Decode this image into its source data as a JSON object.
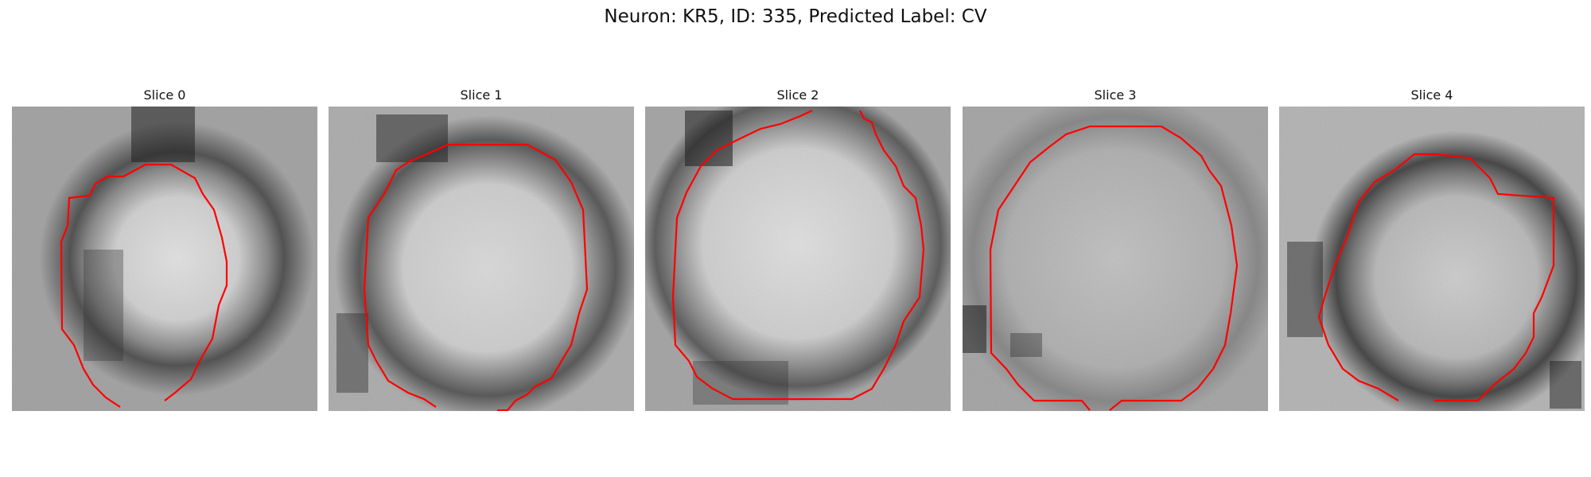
{
  "figure": {
    "title": "Neuron: KR5, ID: 335, Predicted Label: CV"
  },
  "panels": [
    {
      "title": "Slice 0"
    },
    {
      "title": "Slice 1"
    },
    {
      "title": "Slice 2"
    },
    {
      "title": "Slice 3"
    },
    {
      "title": "Slice 4"
    }
  ],
  "colors": {
    "contour": "#ff0000",
    "background": "#ffffff"
  }
}
